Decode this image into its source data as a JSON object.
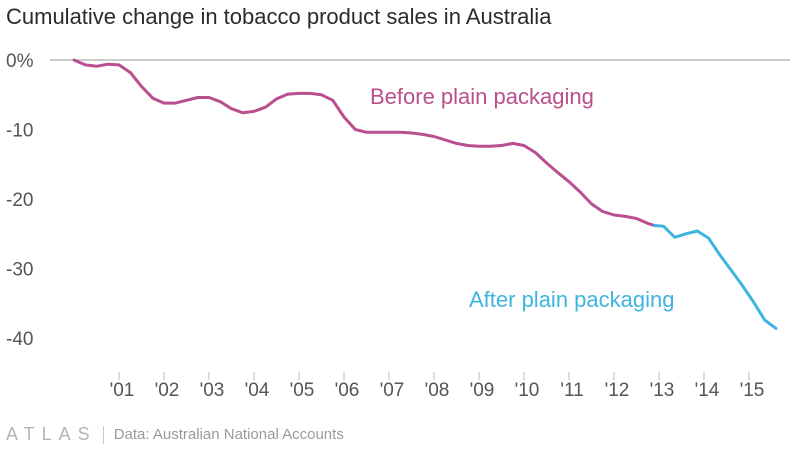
{
  "chart_data": {
    "type": "line",
    "title": "Cumulative change in tobacco product sales in Australia",
    "xlabel": "",
    "ylabel": "",
    "xlim": [
      2000.0,
      2015.8
    ],
    "ylim": [
      -42,
      0
    ],
    "yticks": [
      {
        "value": 0,
        "label": "0%"
      },
      {
        "value": -10,
        "label": "-10"
      },
      {
        "value": -20,
        "label": "-20"
      },
      {
        "value": -30,
        "label": "-30"
      },
      {
        "value": -40,
        "label": "-40"
      }
    ],
    "xticks": [
      {
        "value": 2001,
        "label": "'01"
      },
      {
        "value": 2002,
        "label": "'02"
      },
      {
        "value": 2003,
        "label": "'03"
      },
      {
        "value": 2004,
        "label": "'04"
      },
      {
        "value": 2005,
        "label": "'05"
      },
      {
        "value": 2006,
        "label": "'06"
      },
      {
        "value": 2007,
        "label": "'07"
      },
      {
        "value": 2008,
        "label": "'08"
      },
      {
        "value": 2009,
        "label": "'09"
      },
      {
        "value": 2010,
        "label": "'10"
      },
      {
        "value": 2011,
        "label": "'11"
      },
      {
        "value": 2012,
        "label": "'12"
      },
      {
        "value": 2013,
        "label": "'13"
      },
      {
        "value": 2014,
        "label": "'14"
      },
      {
        "value": 2015,
        "label": "'15"
      }
    ],
    "series": [
      {
        "name": "Before plain packaging",
        "color": "#b94f8e",
        "x": [
          2000.0,
          2000.25,
          2000.5,
          2000.75,
          2001.0,
          2001.25,
          2001.5,
          2001.75,
          2002.0,
          2002.25,
          2002.5,
          2002.75,
          2003.0,
          2003.25,
          2003.5,
          2003.75,
          2004.0,
          2004.25,
          2004.5,
          2004.75,
          2005.0,
          2005.25,
          2005.5,
          2005.75,
          2006.0,
          2006.25,
          2006.5,
          2006.75,
          2007.0,
          2007.25,
          2007.5,
          2007.75,
          2008.0,
          2008.25,
          2008.5,
          2008.75,
          2009.0,
          2009.25,
          2009.5,
          2009.75,
          2010.0,
          2010.25,
          2010.5,
          2010.75,
          2011.0,
          2011.25,
          2011.5,
          2011.75,
          2012.0,
          2012.25,
          2012.5,
          2012.75,
          2012.9
        ],
        "y": [
          0,
          -0.7,
          -0.9,
          -0.6,
          -0.7,
          -1.8,
          -3.8,
          -5.5,
          -6.2,
          -6.2,
          -5.8,
          -5.4,
          -5.4,
          -6.0,
          -7.0,
          -7.6,
          -7.4,
          -6.8,
          -5.6,
          -4.9,
          -4.8,
          -4.8,
          -5.0,
          -5.8,
          -8.2,
          -10.0,
          -10.4,
          -10.4,
          -10.4,
          -10.4,
          -10.5,
          -10.7,
          -11.0,
          -11.5,
          -12.0,
          -12.3,
          -12.4,
          -12.4,
          -12.3,
          -12.0,
          -12.3,
          -13.3,
          -14.8,
          -16.2,
          -17.5,
          -19.0,
          -20.7,
          -21.8,
          -22.3,
          -22.5,
          -22.8,
          -23.5,
          -23.8
        ]
      },
      {
        "name": "After plain packaging",
        "color": "#3eb5df",
        "x": [
          2012.9,
          2013.1,
          2013.35,
          2013.6,
          2013.85,
          2014.1,
          2014.35,
          2014.6,
          2014.85,
          2015.1,
          2015.35,
          2015.6
        ],
        "y": [
          -23.8,
          -23.9,
          -25.5,
          -25.0,
          -24.6,
          -25.6,
          -28.0,
          -30.2,
          -32.4,
          -34.8,
          -37.4,
          -38.6
        ]
      }
    ],
    "annotations": [
      {
        "text": "Before plain packaging",
        "color": "#b94f8e"
      },
      {
        "text": "After plain packaging",
        "color": "#3eb5df"
      }
    ]
  },
  "footer": {
    "brand": "ATLAS",
    "source": "Data: Australian National Accounts"
  }
}
